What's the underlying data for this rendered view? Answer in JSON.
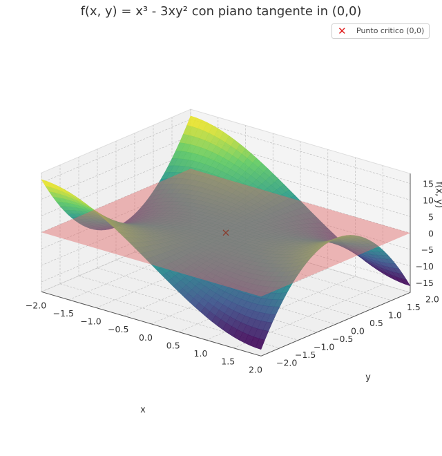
{
  "chart_data": {
    "type": "surface3d",
    "title": "f(x, y) = x³ - 3xy² con piano tangente in (0,0)",
    "function": "x^3 - 3*x*y^2",
    "xlabel": "x",
    "ylabel": "y",
    "zlabel": "f(x, y)",
    "xlim": [
      -2,
      2
    ],
    "ylim": [
      -2,
      2
    ],
    "zlim": [
      -18,
      18
    ],
    "xticks": [
      "−2.0",
      "−1.5",
      "−1.0",
      "−0.5",
      "0.0",
      "0.5",
      "1.0",
      "1.5",
      "2.0"
    ],
    "yticks": [
      "−2.0",
      "−1.5",
      "−1.0",
      "−0.5",
      "0.0",
      "0.5",
      "1.0",
      "1.5",
      "2.0"
    ],
    "zticks": [
      "−15",
      "−10",
      "−5",
      "0",
      "5",
      "10",
      "15"
    ],
    "tangent_plane": {
      "z": 0,
      "color": "#e06666",
      "opacity": 0.45
    },
    "critical_point": {
      "x": 0,
      "y": 0,
      "z": 0,
      "marker": "x",
      "color": "#e02020"
    },
    "legend": {
      "label": "Punto critico (0,0)",
      "position": "top-right"
    },
    "colormap": "viridis",
    "grid": true
  }
}
